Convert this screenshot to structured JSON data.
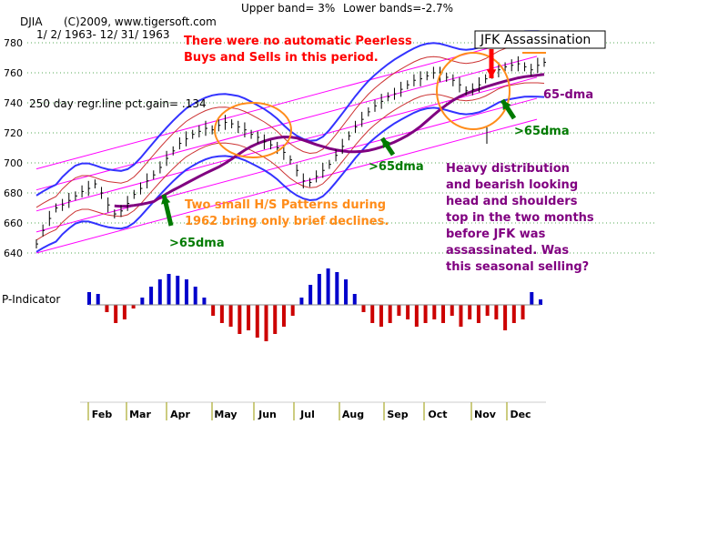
{
  "header": {
    "index": "DJIA",
    "copyright": "(C)2009, www.tigersoft.com",
    "date_range": "1/ 2/ 1963- 12/ 31/ 1963",
    "upper_band": "Upper band= 3%",
    "lower_band": "Lower bands=-2.7%",
    "regression": "250 day regr.line pct.gain= .134"
  },
  "annotations": {
    "no_signals": [
      "There were no automatic Peerless",
      "Buys and Sells in this period."
    ],
    "hs_patterns": [
      "Two small H/S Patterns during",
      "1962 bring only brief declines."
    ],
    "distribution": [
      "Heavy distribution",
      "and bearish looking",
      "head and shoulders",
      "top in the two months",
      "before JFK was",
      "assassinated.  Was",
      "this seasonal selling?"
    ],
    "jfk_box": "JFK Assassination",
    "dma65": "65-dma",
    "gt65_a": ">65dma",
    "gt65_b": ">65dma",
    "gt65_c": ">65dma"
  },
  "indicator_label": "P-Indicator",
  "colors": {
    "red_text": "#ff0000",
    "orange_text": "#ff8c1a",
    "purple_text": "#800080",
    "green_arrow": "#007a00",
    "magenta_line": "#ff00ff",
    "blue_band": "#3333ff",
    "dma_line": "#800080",
    "ind_pos": "#0000cc",
    "ind_neg": "#cc0000"
  },
  "chart_data": {
    "type": "line",
    "title": "DJIA",
    "ylim": [
      640,
      780
    ],
    "yticks": [
      640,
      660,
      680,
      700,
      720,
      740,
      760,
      780
    ],
    "months": [
      "Feb",
      "Mar",
      "Apr",
      "May",
      "Jun",
      "Jul",
      "Aug",
      "Sep",
      "Oct",
      "Nov",
      "Dec"
    ],
    "series": [
      {
        "values": [
          646,
          655,
          663,
          670,
          672,
          675,
          678,
          681,
          683,
          686,
          680,
          672,
          666,
          668,
          673,
          679,
          683,
          688,
          692,
          697,
          703,
          708,
          713,
          716,
          719,
          721,
          723,
          722,
          725,
          727,
          726,
          724,
          722,
          719,
          717,
          714,
          712,
          710,
          707,
          702,
          695,
          688,
          687,
          691,
          695,
          699,
          705,
          711,
          718,
          724,
          729,
          734,
          738,
          741,
          744,
          746,
          749,
          752,
          755,
          756,
          758,
          760,
          759,
          757,
          755,
          752,
          748,
          749,
          752,
          756,
          760,
          762,
          764,
          765,
          766,
          764,
          762,
          765,
          767
        ]
      }
    ],
    "p_indicator": {
      "values": [
        0.35,
        0.3,
        -0.2,
        -0.5,
        -0.4,
        -0.1,
        0.2,
        0.5,
        0.7,
        0.85,
        0.8,
        0.7,
        0.5,
        0.2,
        -0.3,
        -0.5,
        -0.6,
        -0.8,
        -0.7,
        -0.9,
        -1.0,
        -0.8,
        -0.6,
        -0.3,
        0.2,
        0.55,
        0.85,
        1.0,
        0.9,
        0.7,
        0.3,
        -0.2,
        -0.5,
        -0.6,
        -0.5,
        -0.3,
        -0.4,
        -0.6,
        -0.5,
        -0.4,
        -0.5,
        -0.3,
        -0.6,
        -0.4,
        -0.5,
        -0.3,
        -0.4,
        -0.7,
        -0.5,
        -0.4,
        0.35,
        0.15
      ]
    }
  }
}
